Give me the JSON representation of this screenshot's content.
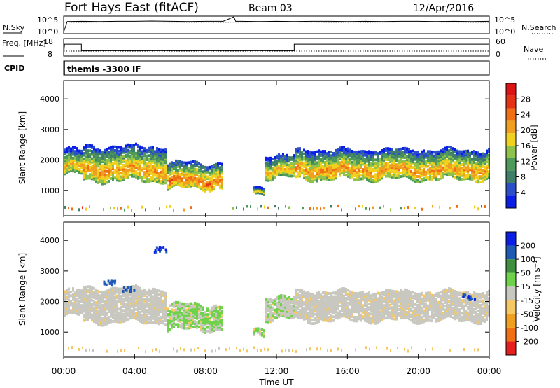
{
  "header": {
    "station": "Fort Hays East (fitACF)",
    "beam": "Beam 03",
    "date": "12/Apr/2016"
  },
  "colors": {
    "power": [
      "#0a1ee6",
      "#2a4fc8",
      "#3f7f6a",
      "#4f9a5a",
      "#8fc24a",
      "#f0d21e",
      "#f0a01e",
      "#f06e14",
      "#e63214",
      "#dc1414"
    ],
    "velocity": [
      "#e61e1e",
      "#f06e14",
      "#f0a01e",
      "#f5c864",
      "#c8c8c0",
      "#6ed24a",
      "#3f8f3f",
      "#1e5ab4",
      "#0a1ee6"
    ]
  },
  "chart_data": [
    {
      "type": "line",
      "ylabel": "N.Sky",
      "ylabel_right": "N.Search",
      "ticks_left": [
        "10^5",
        "10^0"
      ],
      "ticks_right": [
        "10^5",
        "10^0"
      ],
      "series": [
        {
          "name": "N.Sky",
          "style": "solid",
          "x_hours": [
            0.0,
            0.2,
            1,
            2,
            3,
            4,
            5,
            6,
            7,
            8,
            9,
            9.6,
            9.7,
            10,
            11,
            12,
            13,
            14,
            15,
            16,
            17,
            18,
            19,
            20,
            21,
            22,
            23,
            24
          ],
          "values_log10": [
            0.0,
            4.3,
            4.4,
            4.3,
            4.4,
            4.4,
            4.5,
            4.4,
            4.3,
            4.4,
            4.4,
            6.2,
            4.4,
            4.4,
            4.3,
            4.4,
            4.3,
            4.4,
            4.4,
            4.3,
            4.4,
            4.3,
            4.4,
            4.4,
            4.3,
            4.4,
            4.3,
            4.4
          ]
        },
        {
          "name": "N.Search",
          "style": "dotted",
          "x_hours": [
            0,
            4,
            8,
            12,
            16,
            20,
            24
          ],
          "values_log10": [
            4.0,
            4.1,
            4.0,
            4.1,
            4.0,
            4.1,
            4.0
          ]
        }
      ]
    },
    {
      "type": "line",
      "ylabel": "Freq. [MHz]",
      "ylabel_right": "Nave",
      "ticks_left": [
        "18",
        "8"
      ],
      "ticks_right": [
        "60",
        "0"
      ],
      "ylim": [
        8,
        18
      ],
      "series": [
        {
          "name": "Freq.",
          "style": "solid",
          "x_hours": [
            0.0,
            0.05,
            1.0,
            1.0,
            13.0,
            13.0,
            24.0
          ],
          "values": [
            8.0,
            15.2,
            15.2,
            11.0,
            11.0,
            15.2,
            15.2
          ]
        },
        {
          "name": "Nave",
          "style": "dotted",
          "x_hours": [
            0,
            24
          ],
          "values": [
            10.7,
            10.7
          ]
        }
      ]
    },
    {
      "type": "table",
      "label": "CPID",
      "segments": [
        {
          "start_hours": 0.3,
          "text": "themis -3300 IF"
        }
      ]
    },
    {
      "type": "heatmap",
      "ylabel": "Slant Range [km]",
      "xlabel": "",
      "xlim": [
        0,
        24
      ],
      "ylim": [
        180,
        4600
      ],
      "yticks": [
        1000,
        2000,
        3000,
        4000
      ],
      "colorbar_label": "Power [dB]",
      "colorbar_ticks": [
        "4",
        "8",
        "12",
        "16",
        "20",
        "24",
        "28"
      ],
      "colorbar_range": [
        0,
        32
      ],
      "bands": [
        {
          "start": 0.0,
          "end": 1.0,
          "base_lo": 1500,
          "base_hi": 2000,
          "top": 2300,
          "peak": 20
        },
        {
          "start": 1.0,
          "end": 5.8,
          "base_lo": 1300,
          "base_hi": 1850,
          "top": 2400,
          "peak": 22
        },
        {
          "start": 5.8,
          "end": 8.9,
          "base_lo": 1050,
          "base_hi": 1700,
          "top": 1850,
          "peak": 24
        },
        {
          "start": 10.6,
          "end": 11.3,
          "base_lo": 900,
          "base_hi": 1050,
          "top": 1100,
          "peak": 18
        },
        {
          "start": 11.3,
          "end": 13.0,
          "base_lo": 1400,
          "base_hi": 1900,
          "top": 2100,
          "peak": 20
        },
        {
          "start": 13.0,
          "end": 24.0,
          "base_lo": 1350,
          "base_hi": 1900,
          "top": 2300,
          "peak": 22
        }
      ]
    },
    {
      "type": "heatmap",
      "ylabel": "Slant Range [km]",
      "xlabel": "Time UT",
      "xlim": [
        0,
        24
      ],
      "ylim": [
        180,
        4600
      ],
      "yticks": [
        1000,
        2000,
        3000,
        4000
      ],
      "xtick_labels": [
        "00:00",
        "04:00",
        "08:00",
        "12:00",
        "16:00",
        "20:00",
        "00:00"
      ],
      "colorbar_label": "Velocity [m s⁻¹]",
      "colorbar_ticks": [
        "-200",
        "-100",
        "-50",
        "-15",
        "15",
        "50",
        "100",
        "200"
      ],
      "colorbar_range": [
        -250,
        250
      ],
      "bands": [
        {
          "start": 0.0,
          "end": 1.0,
          "base_lo": 1500,
          "base_hi": 2000,
          "top": 2300,
          "velocity": 0
        },
        {
          "start": 1.0,
          "end": 5.8,
          "base_lo": 1300,
          "base_hi": 1850,
          "top": 2400,
          "velocity": 0
        },
        {
          "start": 5.8,
          "end": 8.9,
          "base_lo": 1050,
          "base_hi": 1700,
          "top": 1850,
          "velocity": 30
        },
        {
          "start": 10.6,
          "end": 11.3,
          "base_lo": 900,
          "base_hi": 1050,
          "top": 1100,
          "velocity": 30
        },
        {
          "start": 11.3,
          "end": 13.0,
          "base_lo": 1400,
          "base_hi": 1900,
          "top": 2100,
          "velocity": 25
        },
        {
          "start": 13.0,
          "end": 24.0,
          "base_lo": 1350,
          "base_hi": 1900,
          "top": 2300,
          "velocity": 0
        }
      ],
      "patches": [
        {
          "t": 3.6,
          "r": 2450,
          "velocity": 180
        },
        {
          "t": 5.4,
          "r": 3750,
          "velocity": 200
        },
        {
          "t": 2.5,
          "r": 2650,
          "velocity": 170
        },
        {
          "t": 22.8,
          "r": 2200,
          "velocity": 190
        }
      ]
    }
  ]
}
